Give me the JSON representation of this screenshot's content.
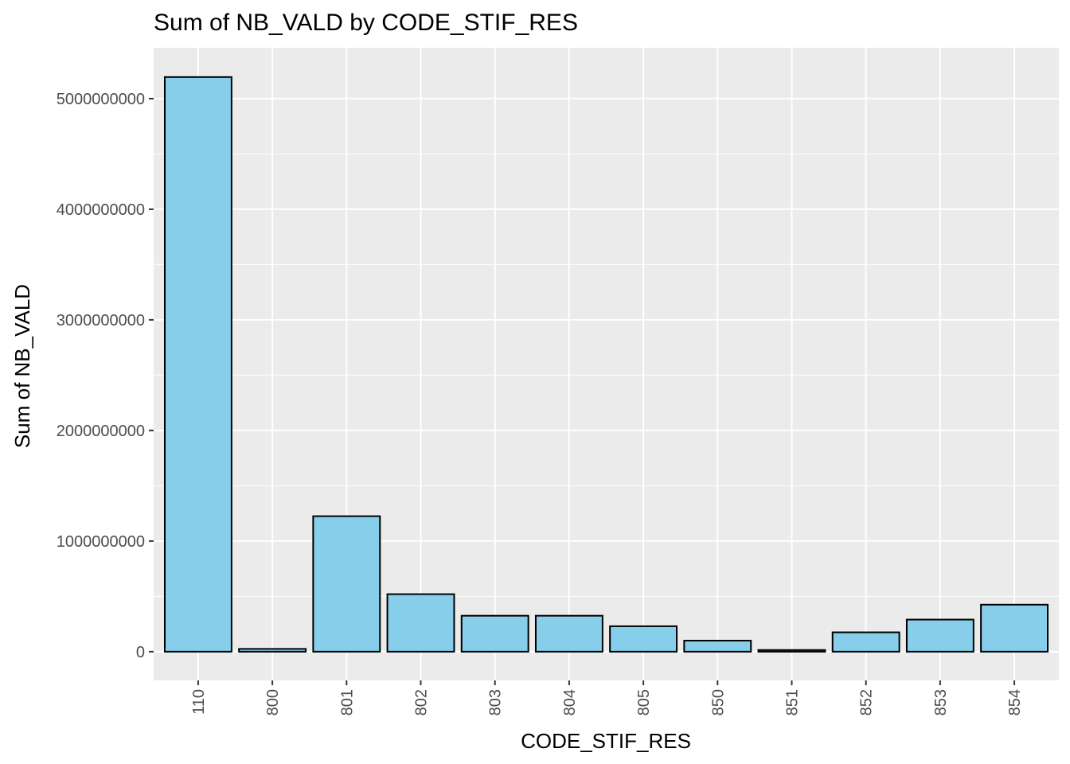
{
  "chart_data": {
    "type": "bar",
    "title": "Sum of NB_VALD by CODE_STIF_RES",
    "xlabel": "CODE_STIF_RES",
    "ylabel": "Sum of NB_VALD",
    "categories": [
      "110",
      "800",
      "801",
      "802",
      "803",
      "804",
      "805",
      "850",
      "851",
      "852",
      "853",
      "854"
    ],
    "values": [
      5195000000,
      25000000,
      1225000000,
      520000000,
      325000000,
      325000000,
      230000000,
      100000000,
      15000000,
      175000000,
      290000000,
      425000000
    ],
    "ylim": [
      -260000000,
      5460000000
    ],
    "yticks": [
      0,
      1000000000,
      2000000000,
      3000000000,
      4000000000,
      5000000000
    ],
    "ytick_labels": [
      "0",
      "1000000000",
      "2000000000",
      "3000000000",
      "4000000000",
      "5000000000"
    ],
    "grid": true,
    "colors": {
      "bar_fill": "#87CEEB",
      "bar_stroke": "#000000",
      "panel_background": "#EBEBEB",
      "grid_major": "#FFFFFF",
      "axis_text": "#4D4D4D"
    }
  }
}
